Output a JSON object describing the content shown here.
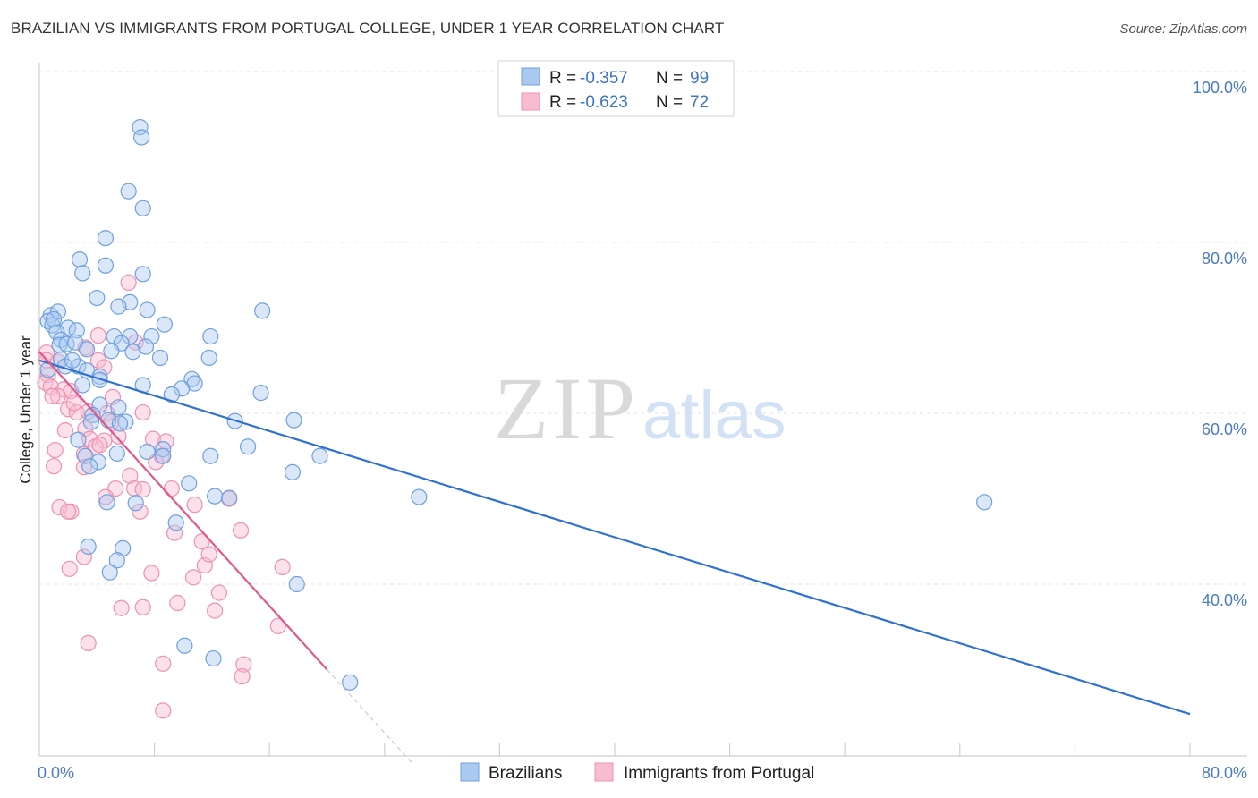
{
  "title": "BRAZILIAN VS IMMIGRANTS FROM PORTUGAL COLLEGE, UNDER 1 YEAR CORRELATION CHART",
  "source": "Source: ZipAtlas.com",
  "watermark": {
    "zip": "ZIP",
    "atlas": "atlas"
  },
  "colors": {
    "blue_fill": "#aac9f0",
    "blue_stroke": "#6f9fe0",
    "blue_line": "#2f72d0",
    "pink_fill": "#f8bcd0",
    "pink_stroke": "#ef90b0",
    "pink_line": "#e2578a",
    "grid": "#e4e4e4",
    "tick_text": "#4a7cc4"
  },
  "legend": {
    "rows": [
      {
        "r_label": "R = ",
        "r_value": "-0.357",
        "n_label": "N = ",
        "n_value": "99"
      },
      {
        "r_label": "R = ",
        "r_value": "-0.623",
        "n_label": "N = ",
        "n_value": "72"
      }
    ]
  },
  "chart_data": {
    "type": "scatter",
    "title": "BRAZILIAN VS IMMIGRANTS FROM PORTUGAL COLLEGE, UNDER 1 YEAR CORRELATION CHART",
    "xlabel": "",
    "ylabel": "College, Under 1 year",
    "xlim": [
      0,
      80
    ],
    "ylim": [
      17,
      103
    ],
    "x_tick_labels": [
      "0.0%",
      "80.0%"
    ],
    "y_ticks": [
      40,
      60,
      80,
      100
    ],
    "y_tick_labels": [
      "40.0%",
      "60.0%",
      "80.0%",
      "100.0%"
    ],
    "grid": true,
    "legend_position": "top-center",
    "series": [
      {
        "name": "Brazilians",
        "r": -0.357,
        "n": 99,
        "trend": {
          "x0": 0.0,
          "y0": 66.2,
          "x1": 80.0,
          "y1": 24.8
        },
        "points": [
          [
            7.0,
            93.5
          ],
          [
            7.1,
            92.3
          ],
          [
            6.2,
            86.0
          ],
          [
            7.2,
            84.0
          ],
          [
            4.6,
            80.5
          ],
          [
            2.8,
            78.0
          ],
          [
            4.6,
            77.3
          ],
          [
            3.0,
            76.4
          ],
          [
            7.2,
            76.3
          ],
          [
            4.0,
            73.5
          ],
          [
            6.3,
            73.0
          ],
          [
            5.5,
            72.5
          ],
          [
            7.5,
            72.1
          ],
          [
            15.5,
            72.0
          ],
          [
            0.8,
            71.5
          ],
          [
            1.3,
            71.9
          ],
          [
            0.6,
            70.8
          ],
          [
            0.9,
            70.3
          ],
          [
            2.0,
            70.0
          ],
          [
            1.2,
            69.5
          ],
          [
            2.6,
            69.7
          ],
          [
            5.2,
            69.0
          ],
          [
            6.3,
            69.0
          ],
          [
            7.8,
            69.0
          ],
          [
            11.9,
            69.0
          ],
          [
            1.5,
            68.6
          ],
          [
            1.4,
            68.0
          ],
          [
            1.9,
            68.1
          ],
          [
            2.5,
            68.3
          ],
          [
            5.7,
            68.2
          ],
          [
            7.4,
            67.8
          ],
          [
            3.3,
            67.5
          ],
          [
            5.0,
            67.3
          ],
          [
            8.4,
            66.5
          ],
          [
            11.8,
            66.5
          ],
          [
            1.5,
            66.3
          ],
          [
            1.8,
            65.5
          ],
          [
            0.6,
            65.1
          ],
          [
            2.7,
            65.5
          ],
          [
            3.3,
            65.0
          ],
          [
            4.2,
            64.3
          ],
          [
            10.6,
            64.0
          ],
          [
            3.0,
            63.3
          ],
          [
            7.2,
            63.3
          ],
          [
            4.2,
            63.9
          ],
          [
            10.8,
            63.5
          ],
          [
            9.9,
            62.9
          ],
          [
            9.2,
            62.2
          ],
          [
            15.4,
            62.4
          ],
          [
            4.2,
            61.0
          ],
          [
            5.5,
            60.7
          ],
          [
            6.0,
            59.0
          ],
          [
            3.7,
            59.8
          ],
          [
            3.6,
            59.0
          ],
          [
            4.8,
            59.2
          ],
          [
            13.6,
            59.1
          ],
          [
            17.7,
            59.2
          ],
          [
            5.6,
            58.8
          ],
          [
            2.7,
            56.9
          ],
          [
            14.5,
            56.1
          ],
          [
            8.6,
            55.8
          ],
          [
            3.2,
            55.0
          ],
          [
            4.1,
            54.3
          ],
          [
            5.4,
            55.3
          ],
          [
            7.5,
            55.5
          ],
          [
            8.6,
            55.0
          ],
          [
            11.9,
            55.0
          ],
          [
            19.5,
            55.0
          ],
          [
            3.5,
            53.8
          ],
          [
            17.6,
            53.1
          ],
          [
            10.4,
            51.8
          ],
          [
            12.2,
            50.3
          ],
          [
            13.2,
            50.1
          ],
          [
            26.4,
            50.2
          ],
          [
            65.7,
            49.6
          ],
          [
            4.7,
            49.6
          ],
          [
            6.7,
            49.5
          ],
          [
            9.5,
            47.2
          ],
          [
            3.4,
            44.4
          ],
          [
            5.8,
            44.2
          ],
          [
            5.4,
            42.8
          ],
          [
            4.9,
            41.4
          ],
          [
            17.9,
            40.0
          ],
          [
            10.1,
            32.8
          ],
          [
            12.1,
            31.3
          ],
          [
            21.6,
            28.5
          ],
          [
            1.0,
            71.0
          ],
          [
            2.3,
            66.2
          ],
          [
            6.5,
            67.2
          ],
          [
            8.7,
            70.4
          ]
        ]
      },
      {
        "name": "Immigrants from Portugal",
        "r": -0.623,
        "n": 72,
        "trend": {
          "x0": 0.0,
          "y0": 67.2,
          "x1": 20.0,
          "y1": 30.0
        },
        "trend_dashed": {
          "x0": 20.0,
          "y0": 30.0,
          "x1": 26.0,
          "y1": 18.9
        },
        "points": [
          [
            6.2,
            75.3
          ],
          [
            4.1,
            69.1
          ],
          [
            6.7,
            68.3
          ],
          [
            3.2,
            67.7
          ],
          [
            0.5,
            67.1
          ],
          [
            0.5,
            66.2
          ],
          [
            4.1,
            66.2
          ],
          [
            1.3,
            66.0
          ],
          [
            4.5,
            65.4
          ],
          [
            0.6,
            64.5
          ],
          [
            0.4,
            63.6
          ],
          [
            0.8,
            63.1
          ],
          [
            1.7,
            62.8
          ],
          [
            2.2,
            62.6
          ],
          [
            1.3,
            62.0
          ],
          [
            5.1,
            61.9
          ],
          [
            2.0,
            60.5
          ],
          [
            2.6,
            60.1
          ],
          [
            3.4,
            60.2
          ],
          [
            4.7,
            60.0
          ],
          [
            7.2,
            60.1
          ],
          [
            5.0,
            59.0
          ],
          [
            3.2,
            58.2
          ],
          [
            3.5,
            57.0
          ],
          [
            5.5,
            57.3
          ],
          [
            7.9,
            57.0
          ],
          [
            4.5,
            56.8
          ],
          [
            3.9,
            56.1
          ],
          [
            8.8,
            56.7
          ],
          [
            4.2,
            56.3
          ],
          [
            1.1,
            55.7
          ],
          [
            8.5,
            55.0
          ],
          [
            3.1,
            55.2
          ],
          [
            8.1,
            54.3
          ],
          [
            1.0,
            53.8
          ],
          [
            3.1,
            53.7
          ],
          [
            6.3,
            52.7
          ],
          [
            6.6,
            51.2
          ],
          [
            5.3,
            51.2
          ],
          [
            9.2,
            51.2
          ],
          [
            7.2,
            51.1
          ],
          [
            4.6,
            50.2
          ],
          [
            13.2,
            50.0
          ],
          [
            10.8,
            49.3
          ],
          [
            1.4,
            49.0
          ],
          [
            2.2,
            48.5
          ],
          [
            2.0,
            48.5
          ],
          [
            7.0,
            48.5
          ],
          [
            14.0,
            46.3
          ],
          [
            9.4,
            46.0
          ],
          [
            11.3,
            45.0
          ],
          [
            11.5,
            42.2
          ],
          [
            11.8,
            43.5
          ],
          [
            3.1,
            43.2
          ],
          [
            16.9,
            42.0
          ],
          [
            2.1,
            41.8
          ],
          [
            7.8,
            41.3
          ],
          [
            10.7,
            40.8
          ],
          [
            12.5,
            39.0
          ],
          [
            5.7,
            37.2
          ],
          [
            7.2,
            37.3
          ],
          [
            9.6,
            37.8
          ],
          [
            12.2,
            36.9
          ],
          [
            16.6,
            35.1
          ],
          [
            3.4,
            33.1
          ],
          [
            8.6,
            30.7
          ],
          [
            14.2,
            30.6
          ],
          [
            14.1,
            29.2
          ],
          [
            8.6,
            25.2
          ],
          [
            0.9,
            62.0
          ],
          [
            2.4,
            61.2
          ],
          [
            1.8,
            58.0
          ]
        ]
      }
    ]
  }
}
